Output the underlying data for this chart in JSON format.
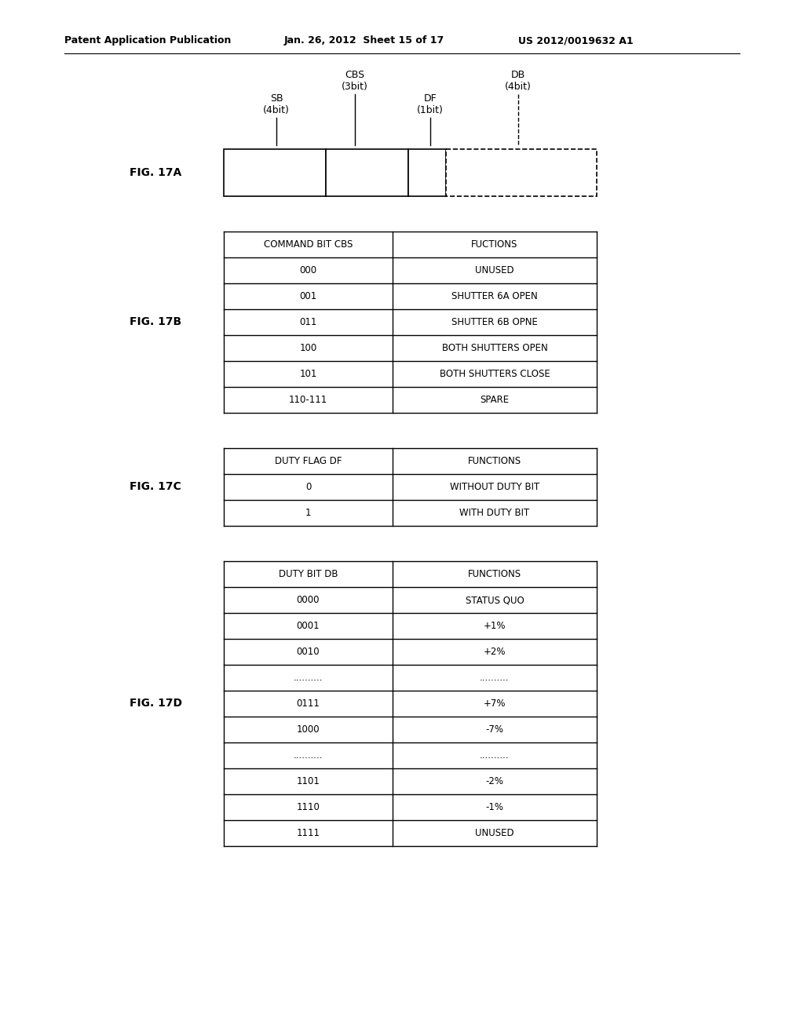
{
  "header_text": "Patent Application Publication",
  "header_date": "Jan. 26, 2012  Sheet 15 of 17",
  "header_patent": "US 2012/0019632 A1",
  "fig17a_label": "FIG. 17A",
  "fig17b_label": "FIG. 17B",
  "fig17c_label": "FIG. 17C",
  "fig17d_label": "FIG. 17D",
  "sb_label": "SB\n(4bit)",
  "cbs_label": "CBS\n(3bit)",
  "df_label": "DF\n(1bit)",
  "db_label": "DB\n(4bit)",
  "table_b_headers": [
    "COMMAND BIT CBS",
    "FUCTIONS"
  ],
  "table_b_rows": [
    [
      "000",
      "UNUSED"
    ],
    [
      "001",
      "SHUTTER 6A OPEN"
    ],
    [
      "011",
      "SHUTTER 6B OPNE"
    ],
    [
      "100",
      "BOTH SHUTTERS OPEN"
    ],
    [
      "101",
      "BOTH SHUTTERS CLOSE"
    ],
    [
      "110-111",
      "SPARE"
    ]
  ],
  "table_c_headers": [
    "DUTY FLAG DF",
    "FUNCTIONS"
  ],
  "table_c_rows": [
    [
      "0",
      "WITHOUT DUTY BIT"
    ],
    [
      "1",
      "WITH DUTY BIT"
    ]
  ],
  "table_d_headers": [
    "DUTY BIT DB",
    "FUNCTIONS"
  ],
  "table_d_rows": [
    [
      "0000",
      "STATUS QUO"
    ],
    [
      "0001",
      "+1%"
    ],
    [
      "0010",
      "+2%"
    ],
    [
      "..........",
      ".........."
    ],
    [
      "0111",
      "+7%"
    ],
    [
      "1000",
      "-7%"
    ],
    [
      "..........",
      ".........."
    ],
    [
      "1101",
      "-2%"
    ],
    [
      "1110",
      "-1%"
    ],
    [
      "1111",
      "UNUSED"
    ]
  ],
  "bg_color": "#ffffff",
  "text_color": "#000000",
  "line_color": "#000000"
}
